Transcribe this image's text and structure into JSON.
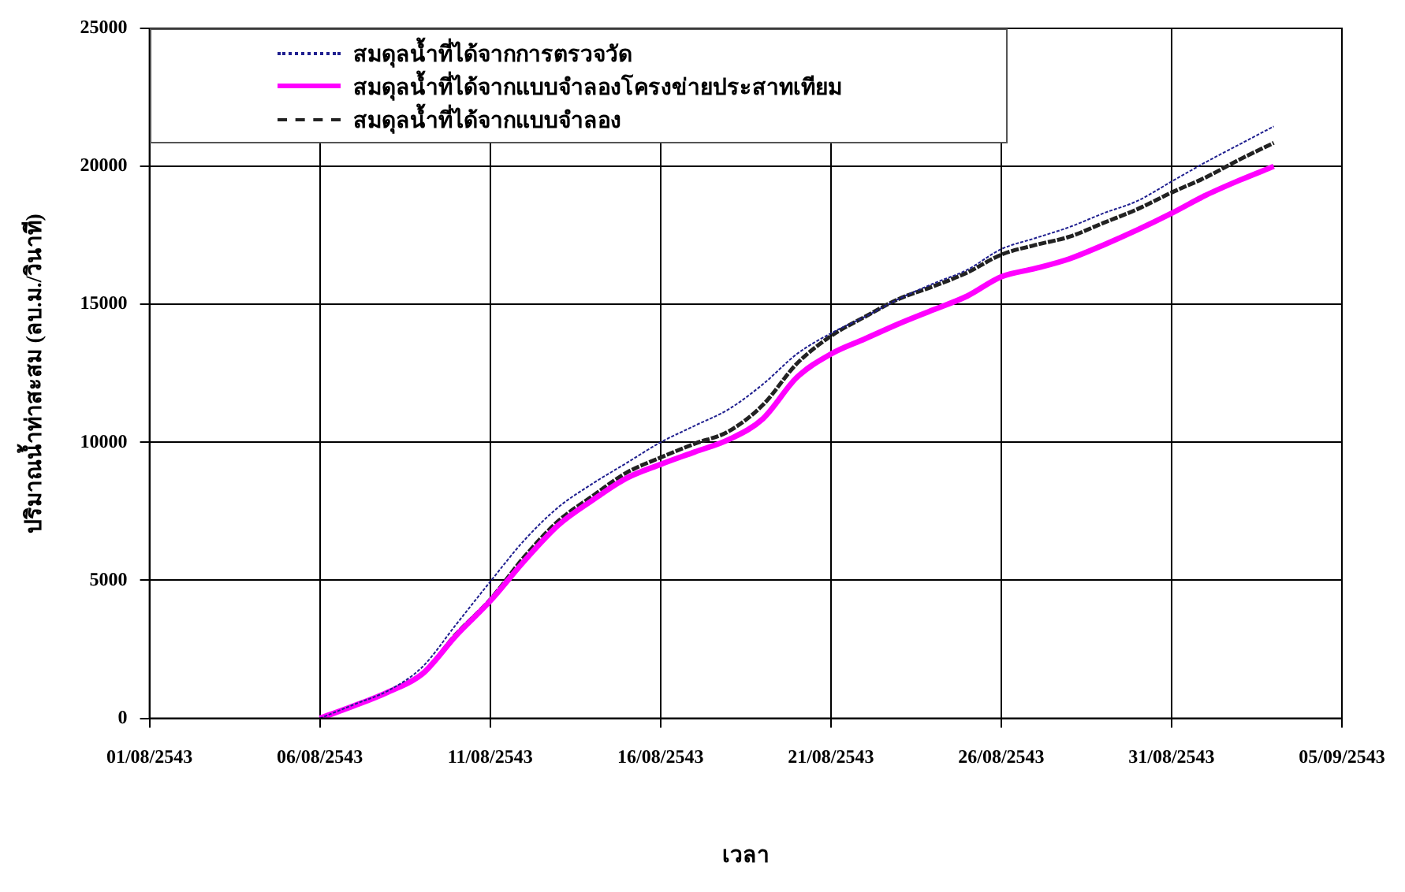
{
  "chart_data": {
    "type": "line",
    "xlabel": "เวลา",
    "ylabel": "ปริมาณน้ำท่าสะสม (ลบ.ม./วินาที)",
    "x": [
      "2543-08-06",
      "2543-08-07",
      "2543-08-08",
      "2543-08-09",
      "2543-08-10",
      "2543-08-11",
      "2543-08-12",
      "2543-08-13",
      "2543-08-14",
      "2543-08-15",
      "2543-08-16",
      "2543-08-17",
      "2543-08-18",
      "2543-08-19",
      "2543-08-20",
      "2543-08-21",
      "2543-08-22",
      "2543-08-23",
      "2543-08-24",
      "2543-08-25",
      "2543-08-26",
      "2543-08-27",
      "2543-08-28",
      "2543-08-29",
      "2543-08-30",
      "2543-08-31",
      "2543-09-01",
      "2543-09-02",
      "2543-09-03"
    ],
    "series": [
      {
        "name": "สมดุลน้ำที่ได้จากการตรวจวัด",
        "color": "#1f1f8f",
        "line_style": "dotted",
        "values": [
          0,
          500,
          1000,
          1850,
          3400,
          4950,
          6450,
          7650,
          8500,
          9250,
          10000,
          10600,
          11200,
          12100,
          13200,
          13950,
          14550,
          15200,
          15750,
          16250,
          17000,
          17400,
          17800,
          18300,
          18750,
          19450,
          20150,
          20800,
          21450
        ]
      },
      {
        "name": "สมดุลน้ำที่ได้จากแบบจำลองโครงข่ายประสาทเทียม",
        "color": "#ff00ff",
        "line_style": "solid",
        "values": [
          0,
          450,
          950,
          1600,
          3000,
          4250,
          5700,
          7000,
          7900,
          8700,
          9200,
          9650,
          10100,
          10850,
          12350,
          13200,
          13750,
          14300,
          14800,
          15300,
          16000,
          16300,
          16650,
          17150,
          17700,
          18300,
          18950,
          19500,
          20000
        ]
      },
      {
        "name": "สมดุลน้ำที่ได้จากแบบจำลอง",
        "color": "#222222",
        "line_style": "dashed",
        "values": [
          0,
          450,
          950,
          1600,
          3050,
          4300,
          5850,
          7150,
          8050,
          8900,
          9450,
          9950,
          10400,
          11350,
          12850,
          13850,
          14550,
          15200,
          15650,
          16150,
          16800,
          17150,
          17450,
          17950,
          18450,
          19050,
          19600,
          20250,
          20850
        ]
      }
    ],
    "xlim": [
      "2543-08-01",
      "2543-09-05"
    ],
    "xticks": [
      {
        "value": "2543-08-01",
        "label": "01/08/2543"
      },
      {
        "value": "2543-08-06",
        "label": "06/08/2543"
      },
      {
        "value": "2543-08-11",
        "label": "11/08/2543"
      },
      {
        "value": "2543-08-16",
        "label": "16/08/2543"
      },
      {
        "value": "2543-08-21",
        "label": "21/08/2543"
      },
      {
        "value": "2543-08-26",
        "label": "26/08/2543"
      },
      {
        "value": "2543-08-31",
        "label": "31/08/2543"
      },
      {
        "value": "2543-09-05",
        "label": "05/09/2543"
      }
    ],
    "ylim": [
      0,
      25000
    ],
    "yticks": [
      0,
      5000,
      10000,
      15000,
      20000,
      25000
    ],
    "grid": true,
    "legend": "top left",
    "marker": "none"
  }
}
